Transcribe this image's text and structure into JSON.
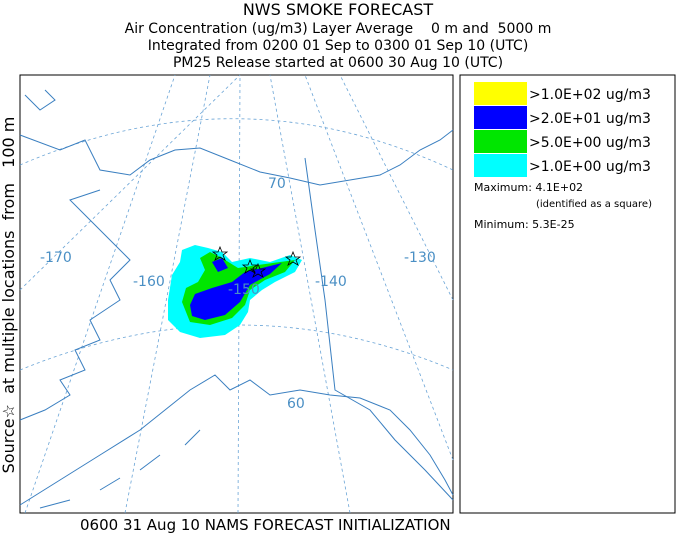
{
  "header": {
    "title": "NWS SMOKE FORECAST",
    "lines": [
      "Air Concentration (ug/m3) Layer Average    0 m and  5000 m",
      "Integrated from 0200 01 Sep to 0300 01 Sep 10 (UTC)",
      "PM25 Release started at 0600 30 Aug 10 (UTC)"
    ]
  },
  "side_label": "Source☆  at multiple locations  from   100 m",
  "footer": "0600 31 Aug 10 NAMS FORECAST INITIALIZATION",
  "legend": {
    "items": [
      {
        "label": ">1.0E+02 ug/m3",
        "color": "#ffff00"
      },
      {
        "label": ">2.0E+01 ug/m3",
        "color": "#0000ff"
      },
      {
        "label": ">5.0E+00 ug/m3",
        "color": "#00e600"
      },
      {
        "label": ">1.0E+00 ug/m3",
        "color": "#00ffff"
      }
    ],
    "maximum": "Maximum: 4.1E+02",
    "maximum_note": "(identified as a square)",
    "minimum": "Minimum: 5.3E-25"
  },
  "map": {
    "labels": [
      "-170",
      "-160",
      "-150",
      "-140",
      "-130",
      "70",
      "60"
    ]
  }
}
